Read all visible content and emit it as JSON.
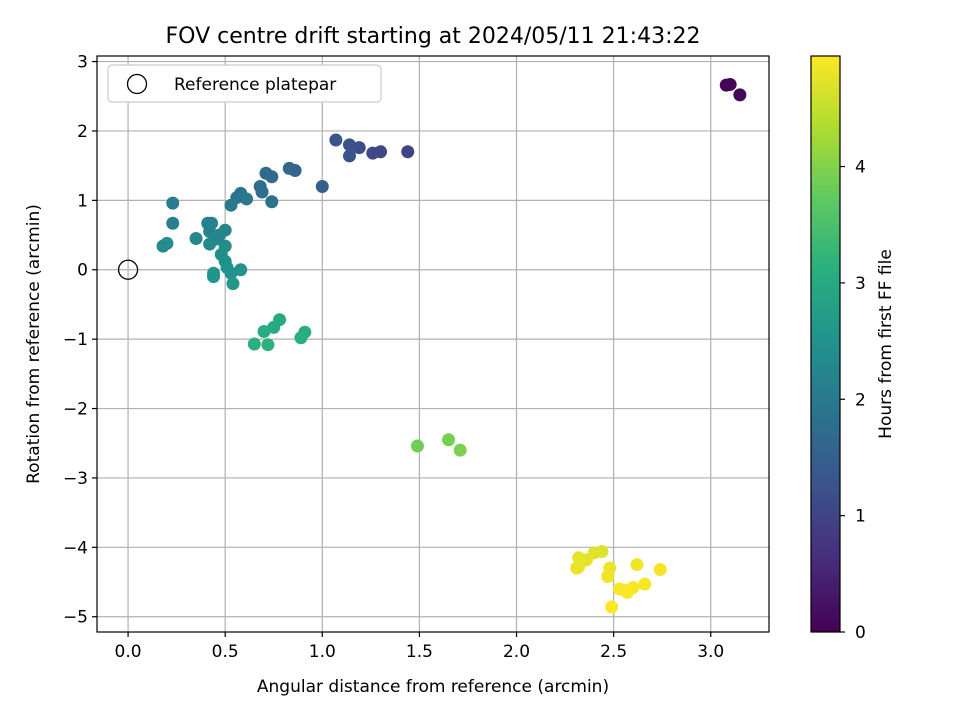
{
  "chart_data": {
    "type": "scatter",
    "title": "FOV centre drift starting at 2024/05/11 21:43:22",
    "xlabel": "Angular distance from reference (arcmin)",
    "ylabel": "Rotation from reference (arcmin)",
    "xlim": [
      -0.16,
      3.3
    ],
    "ylim": [
      -5.22,
      3.08
    ],
    "xticks": [
      0.0,
      0.5,
      1.0,
      1.5,
      2.0,
      2.5,
      3.0
    ],
    "xtick_labels": [
      "0.0",
      "0.5",
      "1.0",
      "1.5",
      "2.0",
      "2.5",
      "3.0"
    ],
    "yticks": [
      3,
      2,
      1,
      0,
      -1,
      -2,
      -3,
      -4,
      -5
    ],
    "ytick_labels": [
      "3",
      "2",
      "1",
      "0",
      "−1",
      "−2",
      "−3",
      "−4",
      "−5"
    ],
    "grid": true,
    "colormap": "viridis",
    "legend": {
      "position": "top-left",
      "entries": [
        "Reference platepar"
      ]
    },
    "reference_point": {
      "x": 0.0,
      "y": 0.0
    },
    "colorbar": {
      "label": "Hours from first FF file",
      "range": [
        0,
        4.95
      ],
      "ticks": [
        0,
        1,
        2,
        3,
        4
      ],
      "tick_labels": [
        "0",
        "1",
        "2",
        "3",
        "4"
      ]
    },
    "points": [
      {
        "x": 3.08,
        "y": 2.66,
        "t": 0.0
      },
      {
        "x": 3.1,
        "y": 2.67,
        "t": 0.05
      },
      {
        "x": 3.15,
        "y": 2.52,
        "t": 0.1
      },
      {
        "x": 1.44,
        "y": 1.7,
        "t": 1.0
      },
      {
        "x": 1.3,
        "y": 1.7,
        "t": 1.05
      },
      {
        "x": 1.26,
        "y": 1.68,
        "t": 1.1
      },
      {
        "x": 1.19,
        "y": 1.76,
        "t": 1.15
      },
      {
        "x": 1.14,
        "y": 1.8,
        "t": 1.2
      },
      {
        "x": 1.14,
        "y": 1.64,
        "t": 1.25
      },
      {
        "x": 1.07,
        "y": 1.87,
        "t": 1.3
      },
      {
        "x": 1.0,
        "y": 1.2,
        "t": 1.5
      },
      {
        "x": 0.86,
        "y": 1.43,
        "t": 1.6
      },
      {
        "x": 0.83,
        "y": 1.46,
        "t": 1.62
      },
      {
        "x": 0.74,
        "y": 1.34,
        "t": 1.7
      },
      {
        "x": 0.71,
        "y": 1.39,
        "t": 1.72
      },
      {
        "x": 0.68,
        "y": 1.2,
        "t": 1.75
      },
      {
        "x": 0.69,
        "y": 1.12,
        "t": 1.78
      },
      {
        "x": 0.74,
        "y": 0.98,
        "t": 1.85
      },
      {
        "x": 0.58,
        "y": 1.1,
        "t": 1.9
      },
      {
        "x": 0.56,
        "y": 1.04,
        "t": 1.92
      },
      {
        "x": 0.61,
        "y": 1.02,
        "t": 1.95
      },
      {
        "x": 0.53,
        "y": 0.93,
        "t": 1.98
      },
      {
        "x": 0.23,
        "y": 0.96,
        "t": 2.05
      },
      {
        "x": 0.23,
        "y": 0.67,
        "t": 2.1
      },
      {
        "x": 0.41,
        "y": 0.67,
        "t": 2.15
      },
      {
        "x": 0.43,
        "y": 0.67,
        "t": 2.18
      },
      {
        "x": 0.42,
        "y": 0.55,
        "t": 2.2
      },
      {
        "x": 0.5,
        "y": 0.57,
        "t": 2.22
      },
      {
        "x": 0.47,
        "y": 0.5,
        "t": 2.25
      },
      {
        "x": 0.45,
        "y": 0.44,
        "t": 2.28
      },
      {
        "x": 0.35,
        "y": 0.45,
        "t": 2.3
      },
      {
        "x": 0.42,
        "y": 0.37,
        "t": 2.32
      },
      {
        "x": 0.5,
        "y": 0.34,
        "t": 2.35
      },
      {
        "x": 0.2,
        "y": 0.38,
        "t": 2.38
      },
      {
        "x": 0.18,
        "y": 0.34,
        "t": 2.4
      },
      {
        "x": 0.48,
        "y": 0.22,
        "t": 2.42
      },
      {
        "x": 0.5,
        "y": 0.12,
        "t": 2.45
      },
      {
        "x": 0.51,
        "y": 0.03,
        "t": 2.48
      },
      {
        "x": 0.58,
        "y": 0.0,
        "t": 2.5
      },
      {
        "x": 0.53,
        "y": -0.05,
        "t": 2.52
      },
      {
        "x": 0.44,
        "y": -0.05,
        "t": 2.55
      },
      {
        "x": 0.44,
        "y": -0.1,
        "t": 2.57
      },
      {
        "x": 0.54,
        "y": -0.2,
        "t": 2.6
      },
      {
        "x": 0.78,
        "y": -0.72,
        "t": 3.0
      },
      {
        "x": 0.75,
        "y": -0.83,
        "t": 3.02
      },
      {
        "x": 0.7,
        "y": -0.89,
        "t": 3.05
      },
      {
        "x": 0.91,
        "y": -0.9,
        "t": 3.07
      },
      {
        "x": 0.89,
        "y": -0.98,
        "t": 3.1
      },
      {
        "x": 0.65,
        "y": -1.07,
        "t": 3.12
      },
      {
        "x": 0.72,
        "y": -1.08,
        "t": 3.15
      },
      {
        "x": 1.49,
        "y": -2.54,
        "t": 3.85
      },
      {
        "x": 1.65,
        "y": -2.45,
        "t": 3.9
      },
      {
        "x": 1.71,
        "y": -2.6,
        "t": 3.95
      },
      {
        "x": 2.44,
        "y": -4.06,
        "t": 4.7
      },
      {
        "x": 2.4,
        "y": -4.08,
        "t": 4.72
      },
      {
        "x": 2.36,
        "y": -4.18,
        "t": 4.74
      },
      {
        "x": 2.32,
        "y": -4.15,
        "t": 4.76
      },
      {
        "x": 2.31,
        "y": -4.3,
        "t": 4.78
      },
      {
        "x": 2.32,
        "y": -4.28,
        "t": 4.8
      },
      {
        "x": 2.48,
        "y": -4.3,
        "t": 4.82
      },
      {
        "x": 2.47,
        "y": -4.42,
        "t": 4.84
      },
      {
        "x": 2.62,
        "y": -4.25,
        "t": 4.86
      },
      {
        "x": 2.74,
        "y": -4.32,
        "t": 4.88
      },
      {
        "x": 2.66,
        "y": -4.53,
        "t": 4.89
      },
      {
        "x": 2.6,
        "y": -4.58,
        "t": 4.9
      },
      {
        "x": 2.57,
        "y": -4.62,
        "t": 4.91
      },
      {
        "x": 2.53,
        "y": -4.6,
        "t": 4.92
      },
      {
        "x": 2.57,
        "y": -4.65,
        "t": 4.93
      },
      {
        "x": 2.49,
        "y": -4.86,
        "t": 4.95
      }
    ]
  }
}
